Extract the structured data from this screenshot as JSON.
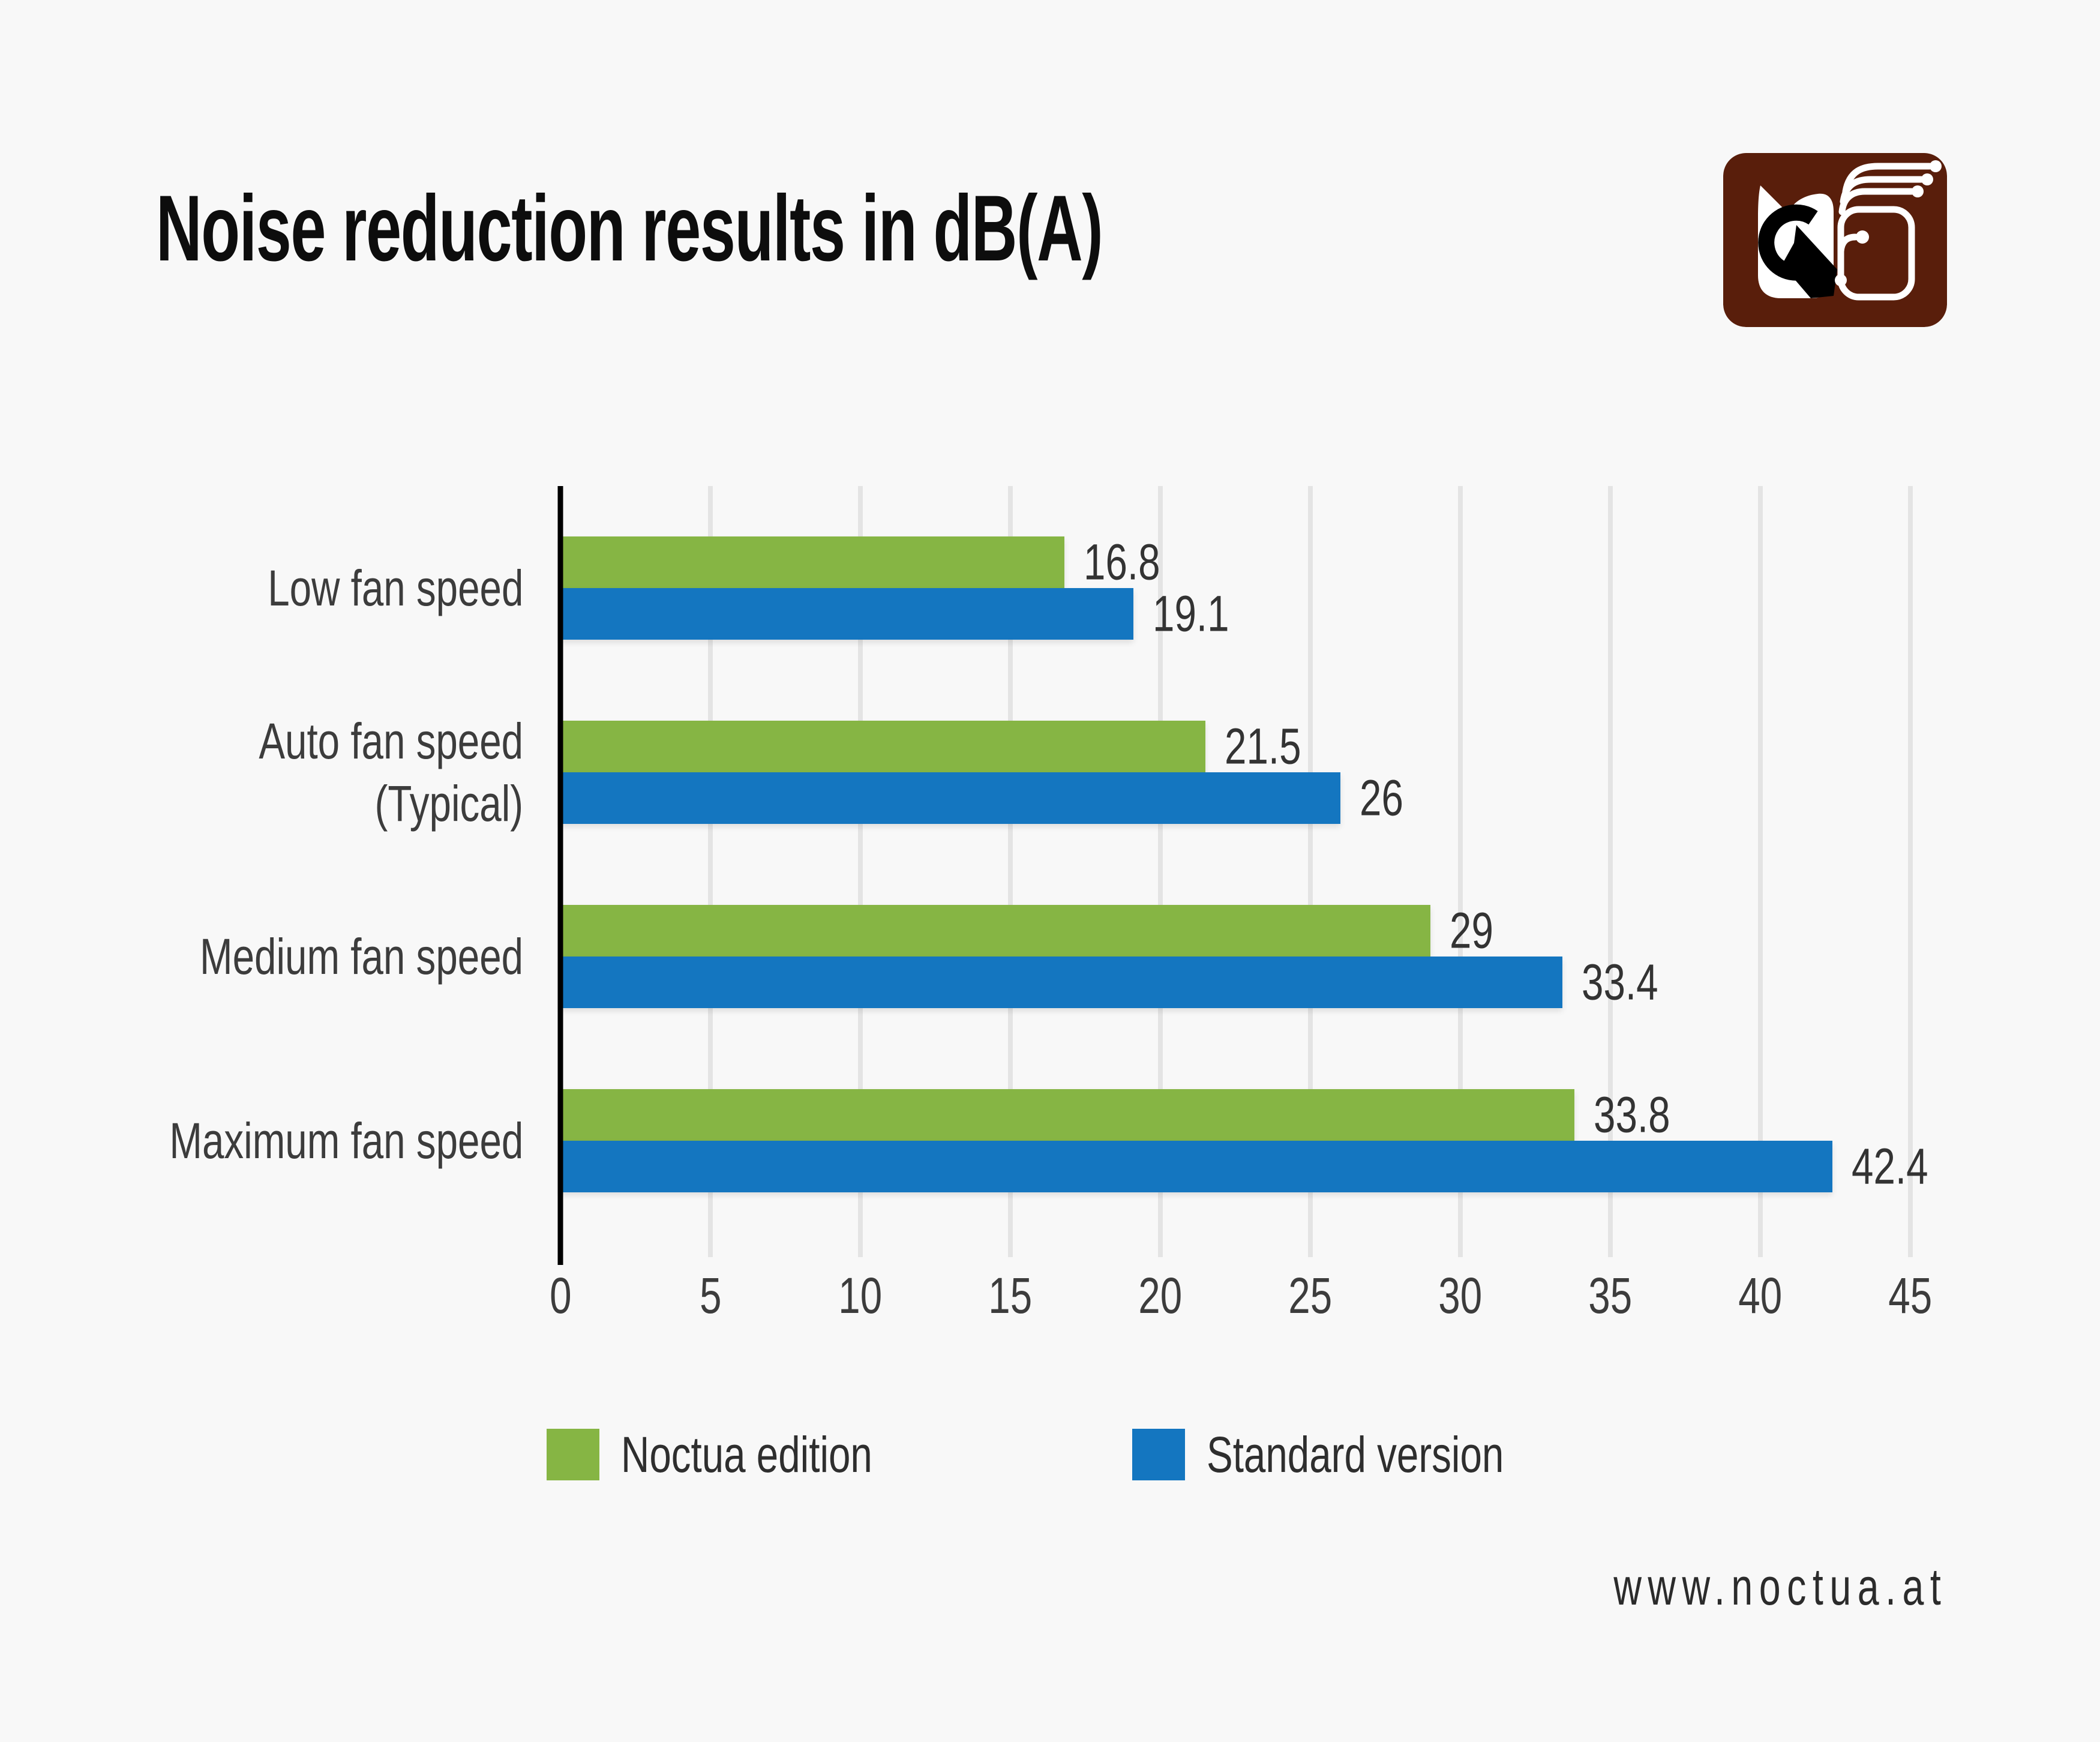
{
  "page": {
    "background": "#f8f8f8"
  },
  "header": {
    "title": "Noise reduction results in dB(A)"
  },
  "logo": {
    "name": "Noctua owl logo",
    "background": "#591e0b"
  },
  "footer": {
    "website": "www.noctua.at"
  },
  "colors": {
    "noctua_green": "#86b544",
    "standard_blue": "#1476c0",
    "gridline": "#e4e4e4",
    "axis": "#000000",
    "text_dark": "#3c3c3c"
  },
  "chart_data": {
    "type": "bar",
    "orientation": "horizontal",
    "title": "Noise reduction results in dB(A)",
    "xlabel": "",
    "ylabel": "",
    "xlim": [
      0,
      45
    ],
    "xticks": [
      0,
      5,
      10,
      15,
      20,
      25,
      30,
      35,
      40,
      45
    ],
    "grid": "vertical",
    "legend_position": "bottom",
    "categories": [
      "Low fan speed",
      "Auto fan speed\n(Typical)",
      "Medium fan speed",
      "Maximum fan speed"
    ],
    "series": [
      {
        "name": "Noctua edition",
        "color": "#86b544",
        "values": [
          16.8,
          21.5,
          29,
          33.8
        ],
        "labels": [
          "16.8",
          "21.5",
          "29",
          "33.8"
        ]
      },
      {
        "name": "Standard version",
        "color": "#1476c0",
        "values": [
          19.1,
          26,
          33.4,
          42.4
        ],
        "labels": [
          "19.1",
          "26",
          "33.4",
          "42.4"
        ]
      }
    ]
  }
}
